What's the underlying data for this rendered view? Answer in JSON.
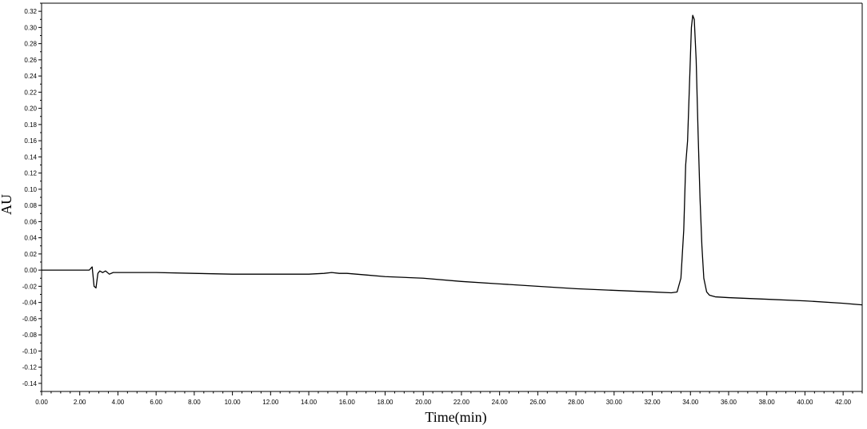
{
  "chart_data": {
    "type": "line",
    "title": "",
    "xlabel": "Time(min)",
    "ylabel": "AU",
    "xlim": [
      0,
      43
    ],
    "ylim": [
      -0.15,
      0.33
    ],
    "x_ticks": [
      0,
      2,
      4,
      6,
      8,
      10,
      12,
      14,
      16,
      18,
      20,
      22,
      24,
      26,
      28,
      30,
      32,
      34,
      36,
      38,
      40,
      42
    ],
    "x_tick_labels": [
      "0.00",
      "2.00",
      "4.00",
      "6.00",
      "8.00",
      "10.00",
      "12.00",
      "14.00",
      "16.00",
      "18.00",
      "20.00",
      "22.00",
      "24.00",
      "26.00",
      "28.00",
      "30.00",
      "32.00",
      "34.00",
      "36.00",
      "38.00",
      "40.00",
      "42.00"
    ],
    "y_ticks": [
      -0.14,
      -0.12,
      -0.1,
      -0.08,
      -0.06,
      -0.04,
      -0.02,
      0.0,
      0.02,
      0.04,
      0.06,
      0.08,
      0.1,
      0.12,
      0.14,
      0.16,
      0.18,
      0.2,
      0.22,
      0.24,
      0.26,
      0.28,
      0.3,
      0.32
    ],
    "y_tick_labels": [
      "-0.14",
      "-0.12",
      "-0.10",
      "-0.08",
      "-0.06",
      "-0.04",
      "-0.02",
      "0.00",
      "0.02",
      "0.04",
      "0.06",
      "0.08",
      "0.10",
      "0.12",
      "0.14",
      "0.16",
      "0.18",
      "0.20",
      "0.22",
      "0.24",
      "0.26",
      "0.28",
      "0.30",
      "0.32"
    ],
    "grid": false,
    "legend": "none",
    "line_color": "#000000",
    "series": [
      {
        "x": [
          0.0,
          1.0,
          2.0,
          2.5,
          2.65,
          2.75,
          2.85,
          2.95,
          3.05,
          3.2,
          3.35,
          3.55,
          3.75,
          4.0,
          5.0,
          6.0,
          8.0,
          10.0,
          12.0,
          14.0,
          14.8,
          15.2,
          15.6,
          16.0,
          17.0,
          18.0,
          20.0,
          22.0,
          24.0,
          26.0,
          28.0,
          30.0,
          32.0,
          33.0,
          33.3,
          33.5,
          33.65,
          33.75,
          33.85,
          33.95,
          34.05,
          34.12,
          34.2,
          34.3,
          34.4,
          34.5,
          34.6,
          34.7,
          34.85,
          35.0,
          35.3,
          36.0,
          38.0,
          40.0,
          42.0,
          43.0
        ],
        "y": [
          0.0,
          0.0,
          0.0,
          0.0,
          0.004,
          -0.02,
          -0.022,
          -0.004,
          -0.001,
          -0.003,
          -0.001,
          -0.005,
          -0.003,
          -0.003,
          -0.003,
          -0.003,
          -0.004,
          -0.005,
          -0.005,
          -0.005,
          -0.004,
          -0.003,
          -0.004,
          -0.004,
          -0.006,
          -0.008,
          -0.01,
          -0.014,
          -0.017,
          -0.02,
          -0.023,
          -0.025,
          -0.027,
          -0.028,
          -0.027,
          -0.01,
          0.05,
          0.13,
          0.16,
          0.23,
          0.3,
          0.315,
          0.31,
          0.26,
          0.17,
          0.09,
          0.03,
          -0.01,
          -0.027,
          -0.031,
          -0.033,
          -0.034,
          -0.036,
          -0.038,
          -0.041,
          -0.043
        ]
      }
    ]
  }
}
